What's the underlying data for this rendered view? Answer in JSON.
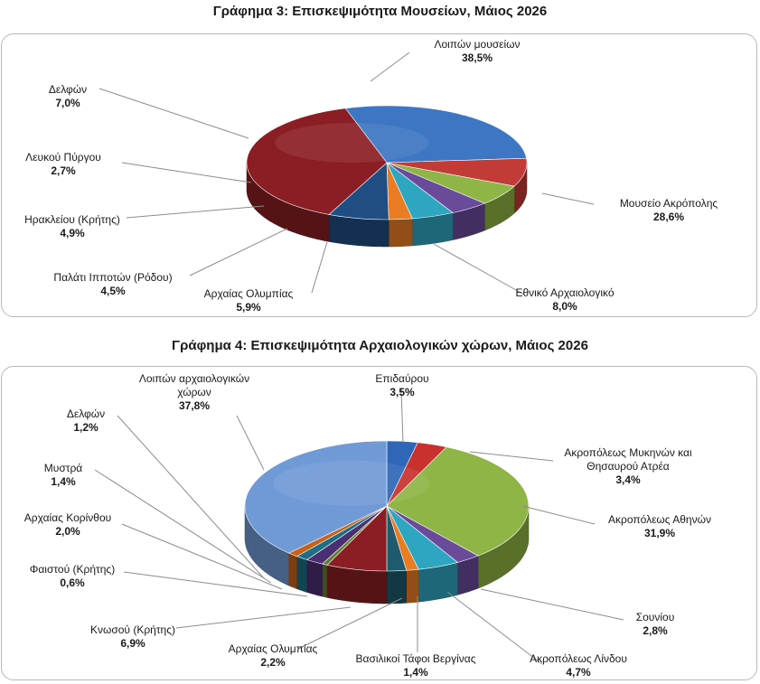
{
  "chart_data": [
    {
      "type": "pie",
      "title": "Γράφημα 3: Επισκεψιμότητα Μουσείων, Μάιος 2026",
      "slices": [
        {
          "name": "Μουσείο Ακρόπολης",
          "value": 28.6,
          "value_label": "28,6%",
          "color": "#3d76c2"
        },
        {
          "name": "Εθνικό Αρχαιολογικό",
          "value": 8.0,
          "value_label": "8,0%",
          "color": "#c23b36"
        },
        {
          "name": "Αρχαίας Ολυμπίας",
          "value": 5.9,
          "value_label": "5,9%",
          "color": "#8fb546"
        },
        {
          "name": "Παλάτι Ιπποτών (Ρόδου)",
          "value": 4.5,
          "value_label": "4,5%",
          "color": "#6a4a9b"
        },
        {
          "name": "Ηρακλείου (Κρήτης)",
          "value": 4.9,
          "value_label": "4,9%",
          "color": "#2ea6c2"
        },
        {
          "name": "Λευκού Πύργου",
          "value": 2.7,
          "value_label": "2,7%",
          "color": "#ea7d24"
        },
        {
          "name": "Δελφών",
          "value": 7.0,
          "value_label": "7,0%",
          "color": "#1f4e85"
        },
        {
          "name": "Λοιπών μουσείων",
          "value": 38.5,
          "value_label": "38,5%",
          "color": "#8a1e24"
        }
      ]
    },
    {
      "type": "pie",
      "title": "Γράφημα 4: Επισκεψιμότητα Αρχαιολογικών χώρων, Μάιος 2026",
      "slices": [
        {
          "name": "Επιδαύρου",
          "value": 3.5,
          "value_label": "3,5%",
          "color": "#2e66b8"
        },
        {
          "name": "Ακροπόλεως Μυκηνών και Θησαυρού Ατρέα",
          "value": 3.4,
          "value_label": "3,4%",
          "color": "#c8312e"
        },
        {
          "name": "Ακροπόλεως Αθηνών",
          "value": 31.9,
          "value_label": "31,9%",
          "color": "#8fb546"
        },
        {
          "name": "Σουνίου",
          "value": 2.8,
          "value_label": "2,8%",
          "color": "#6a4a9b"
        },
        {
          "name": "Ακροπόλεως Λίνδου",
          "value": 4.7,
          "value_label": "4,7%",
          "color": "#2ea6c2"
        },
        {
          "name": "Βασιλικοί Τάφοι Βεργίνας",
          "value": 1.4,
          "value_label": "1,4%",
          "color": "#ea7d24"
        },
        {
          "name": "Αρχαίας Ολυμπίας",
          "value": 2.2,
          "value_label": "2,2%",
          "color": "#1f5a6e"
        },
        {
          "name": "Κνωσού (Κρήτης)",
          "value": 6.9,
          "value_label": "6,9%",
          "color": "#8a1e24"
        },
        {
          "name": "Φαιστού (Κρήτης)",
          "value": 0.6,
          "value_label": "0,6%",
          "color": "#5f7d2e"
        },
        {
          "name": "Αρχαίας Κορίνθου",
          "value": 2.0,
          "value_label": "2,0%",
          "color": "#4b2f72"
        },
        {
          "name": "Μυστρά",
          "value": 1.4,
          "value_label": "1,4%",
          "color": "#1d6f86"
        },
        {
          "name": "Δελφών",
          "value": 1.2,
          "value_label": "1,2%",
          "color": "#c8621c"
        },
        {
          "name": "Λοιπών αρχαιολογικών χώρων",
          "value": 37.8,
          "value_label": "37,8%",
          "color": "#6f9ad6"
        }
      ]
    }
  ]
}
